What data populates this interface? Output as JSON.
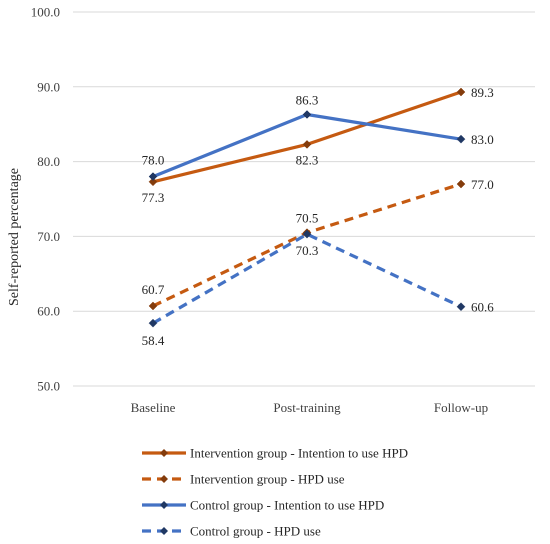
{
  "chart_data": {
    "type": "line",
    "title": "",
    "xlabel": "",
    "ylabel": "Self-reported percentage",
    "categories": [
      "Baseline",
      "Post-training",
      "Follow-up"
    ],
    "ylim": [
      50,
      100
    ],
    "yticks": [
      "50.0",
      "60.0",
      "70.0",
      "80.0",
      "90.0",
      "100.0"
    ],
    "grid": "horizontal",
    "legend_position": "bottom",
    "series": [
      {
        "name": "Intervention group - Intention to use HPD",
        "values": [
          77.3,
          82.3,
          89.3
        ],
        "labels": [
          "77.3",
          "82.3",
          "89.3"
        ],
        "color": "#C55A11",
        "dash": "solid",
        "marker_color": "#843C0C"
      },
      {
        "name": "Intervention group - HPD use",
        "values": [
          60.7,
          70.5,
          77.0
        ],
        "labels": [
          "60.7",
          "70.5",
          "77.0"
        ],
        "color": "#C55A11",
        "dash": "dashed",
        "marker_color": "#843C0C"
      },
      {
        "name": "Control group - Intention to use HPD",
        "values": [
          78.0,
          86.3,
          83.0
        ],
        "labels": [
          "78.0",
          "86.3",
          "83.0"
        ],
        "color": "#4472C4",
        "dash": "solid",
        "marker_color": "#203864"
      },
      {
        "name": "Control group - HPD use",
        "values": [
          58.4,
          70.3,
          60.6
        ],
        "labels": [
          "58.4",
          "70.3",
          "60.6"
        ],
        "color": "#4472C4",
        "dash": "dashed",
        "marker_color": "#203864"
      }
    ]
  }
}
